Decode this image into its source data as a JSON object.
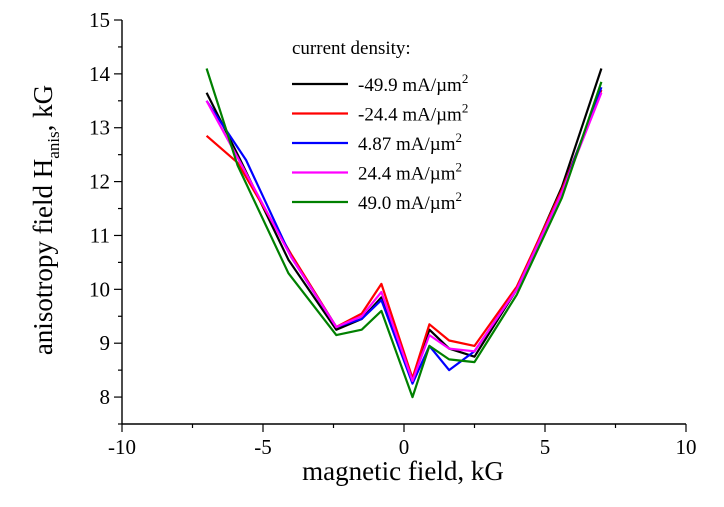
{
  "chart_data": {
    "type": "line",
    "title": "",
    "xlabel": "magnetic field, kG",
    "ylabel_main": "anisotropy field H",
    "ylabel_sub": "anis",
    "ylabel_tail": ", kG",
    "xlim": [
      -10,
      10
    ],
    "ylim": [
      7.5,
      15
    ],
    "xticks": [
      -10,
      -5,
      0,
      5,
      10
    ],
    "xtick_labels": [
      "-10",
      "-5",
      "0",
      "5",
      "10"
    ],
    "yticks": [
      8,
      9,
      10,
      11,
      12,
      13,
      14,
      15
    ],
    "ytick_labels": [
      "8",
      "9",
      "10",
      "11",
      "12",
      "13",
      "14",
      "15"
    ],
    "grid": false,
    "legend": {
      "title": "current density:",
      "placement": "top-center"
    },
    "series": [
      {
        "name": "-49.9 mA/µm",
        "name_sup": "2",
        "color": "#000000",
        "points": [
          [
            -7.0,
            13.65
          ],
          [
            -5.8,
            12.4
          ],
          [
            -4.1,
            10.55
          ],
          [
            -2.4,
            9.25
          ],
          [
            -1.5,
            9.45
          ],
          [
            -0.8,
            9.85
          ],
          [
            0.3,
            8.3
          ],
          [
            0.9,
            9.25
          ],
          [
            1.6,
            8.9
          ],
          [
            2.5,
            8.75
          ],
          [
            4.0,
            10.0
          ],
          [
            5.6,
            11.9
          ],
          [
            7.0,
            14.1
          ]
        ]
      },
      {
        "name": "-24.4 mA/µm",
        "name_sup": "2",
        "color": "#ff0000",
        "points": [
          [
            -7.0,
            12.85
          ],
          [
            -5.9,
            12.35
          ],
          [
            -4.0,
            10.65
          ],
          [
            -2.4,
            9.3
          ],
          [
            -1.5,
            9.55
          ],
          [
            -0.8,
            10.1
          ],
          [
            0.3,
            8.35
          ],
          [
            0.9,
            9.35
          ],
          [
            1.6,
            9.05
          ],
          [
            2.5,
            8.95
          ],
          [
            4.0,
            10.05
          ],
          [
            5.6,
            11.85
          ],
          [
            7.0,
            13.7
          ]
        ]
      },
      {
        "name": "4.87 mA/µm",
        "name_sup": "2",
        "color": "#0000ff",
        "points": [
          [
            -7.0,
            13.5
          ],
          [
            -5.6,
            12.4
          ],
          [
            -4.0,
            10.6
          ],
          [
            -2.4,
            9.3
          ],
          [
            -1.5,
            9.45
          ],
          [
            -0.8,
            9.8
          ],
          [
            0.3,
            8.25
          ],
          [
            0.9,
            8.95
          ],
          [
            1.6,
            8.5
          ],
          [
            2.5,
            8.85
          ],
          [
            4.0,
            10.0
          ],
          [
            5.6,
            11.8
          ],
          [
            7.0,
            13.75
          ]
        ]
      },
      {
        "name": "24.4 mA/µm",
        "name_sup": "2",
        "color": "#ff00ff",
        "points": [
          [
            -7.0,
            13.5
          ],
          [
            -5.8,
            12.35
          ],
          [
            -4.0,
            10.6
          ],
          [
            -2.4,
            9.3
          ],
          [
            -1.5,
            9.5
          ],
          [
            -0.8,
            9.95
          ],
          [
            0.3,
            8.3
          ],
          [
            0.9,
            9.15
          ],
          [
            1.6,
            8.9
          ],
          [
            2.5,
            8.85
          ],
          [
            4.0,
            10.0
          ],
          [
            5.6,
            11.8
          ],
          [
            7.0,
            13.65
          ]
        ]
      },
      {
        "name": "49.0 mA/µm",
        "name_sup": "2",
        "color": "#008000",
        "points": [
          [
            -7.0,
            14.1
          ],
          [
            -5.9,
            12.3
          ],
          [
            -4.1,
            10.3
          ],
          [
            -2.4,
            9.15
          ],
          [
            -1.5,
            9.25
          ],
          [
            -0.8,
            9.6
          ],
          [
            0.3,
            8.0
          ],
          [
            0.9,
            8.95
          ],
          [
            1.6,
            8.7
          ],
          [
            2.5,
            8.65
          ],
          [
            4.0,
            9.9
          ],
          [
            5.6,
            11.7
          ],
          [
            7.0,
            13.85
          ]
        ]
      }
    ]
  }
}
